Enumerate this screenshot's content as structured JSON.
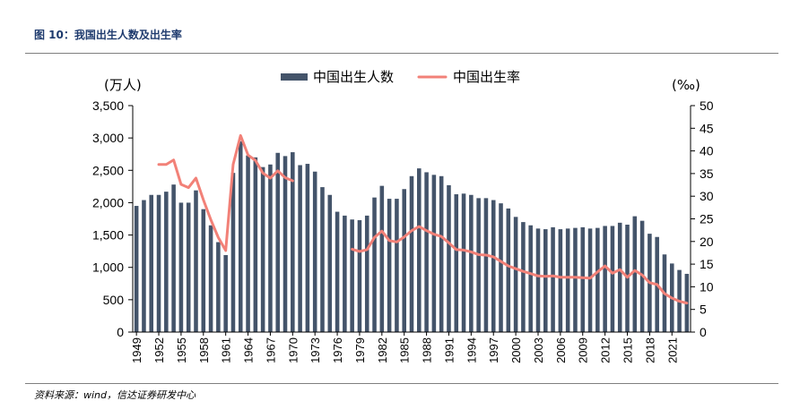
{
  "figure": {
    "title": "图 10：我国出生人数及出生率",
    "source": "资料来源：wind，信达证券研发中心"
  },
  "chart_data": {
    "type": "bar+line",
    "x": [
      1949,
      1950,
      1951,
      1952,
      1953,
      1954,
      1955,
      1956,
      1957,
      1958,
      1959,
      1960,
      1961,
      1962,
      1963,
      1964,
      1965,
      1966,
      1967,
      1968,
      1969,
      1970,
      1971,
      1972,
      1973,
      1974,
      1975,
      1976,
      1977,
      1978,
      1979,
      1980,
      1981,
      1982,
      1983,
      1984,
      1985,
      1986,
      1987,
      1988,
      1989,
      1990,
      1991,
      1992,
      1993,
      1994,
      1995,
      1996,
      1997,
      1998,
      1999,
      2000,
      2001,
      2002,
      2003,
      2004,
      2005,
      2006,
      2007,
      2008,
      2009,
      2010,
      2011,
      2012,
      2013,
      2014,
      2015,
      2016,
      2017,
      2018,
      2019,
      2020,
      2021,
      2022,
      2023
    ],
    "x_tick_labels": [
      "1949",
      "1952",
      "1955",
      "1958",
      "1961",
      "1964",
      "1967",
      "1970",
      "1973",
      "1976",
      "1979",
      "1982",
      "1985",
      "1988",
      "1991",
      "1994",
      "1997",
      "2000",
      "2003",
      "2006",
      "2009",
      "2012",
      "2015",
      "2018",
      "2021"
    ],
    "series": [
      {
        "name": "中国出生人数",
        "type": "bar",
        "axis": "left",
        "color": "#44546a",
        "values": [
          1950,
          2040,
          2120,
          2120,
          2170,
          2280,
          2000,
          2000,
          2190,
          1900,
          1650,
          1390,
          1190,
          2460,
          2950,
          2730,
          2700,
          2550,
          2590,
          2770,
          2720,
          2780,
          2580,
          2600,
          2480,
          2240,
          2120,
          1860,
          1800,
          1740,
          1730,
          1800,
          2080,
          2260,
          2060,
          2060,
          2210,
          2410,
          2530,
          2470,
          2430,
          2410,
          2270,
          2130,
          2140,
          2120,
          2070,
          2070,
          2040,
          1990,
          1910,
          1780,
          1700,
          1650,
          1600,
          1590,
          1620,
          1590,
          1600,
          1610,
          1620,
          1600,
          1610,
          1640,
          1640,
          1690,
          1660,
          1790,
          1720,
          1520,
          1470,
          1200,
          1060,
          960,
          900
        ]
      },
      {
        "name": "中国出生率",
        "type": "line",
        "axis": "right",
        "color": "#f28178",
        "values": [
          null,
          null,
          null,
          37.0,
          37.0,
          38.0,
          32.6,
          31.9,
          34.0,
          29.2,
          24.8,
          20.9,
          18.0,
          37.0,
          43.4,
          39.1,
          37.9,
          35.1,
          34.0,
          35.6,
          34.1,
          33.4,
          null,
          null,
          null,
          null,
          null,
          null,
          null,
          18.3,
          17.8,
          18.2,
          20.9,
          22.3,
          20.2,
          19.9,
          21.0,
          22.4,
          23.3,
          22.4,
          21.6,
          21.1,
          19.7,
          18.2,
          18.1,
          17.7,
          17.1,
          17.0,
          16.6,
          15.6,
          14.6,
          14.0,
          13.4,
          12.9,
          12.4,
          12.3,
          12.4,
          12.1,
          12.1,
          12.1,
          12.0,
          11.9,
          13.3,
          14.6,
          13.0,
          13.8,
          12.1,
          13.6,
          12.6,
          10.9,
          10.5,
          8.5,
          7.5,
          6.8,
          6.4
        ]
      }
    ],
    "y_left": {
      "unit_label": "(万人)",
      "ylim": [
        0,
        3500
      ],
      "ticks": [
        "0",
        "500",
        "1,000",
        "1,500",
        "2,000",
        "2,500",
        "3,000",
        "3,500"
      ]
    },
    "y_right": {
      "unit_label": "(‰)",
      "ylim": [
        0,
        50
      ],
      "ticks": [
        "0",
        "5",
        "10",
        "15",
        "20",
        "25",
        "30",
        "35",
        "40",
        "45",
        "50"
      ]
    },
    "legend": {
      "position": "top-center",
      "entries": [
        "中国出生人数",
        "中国出生率"
      ]
    },
    "grid": false
  }
}
